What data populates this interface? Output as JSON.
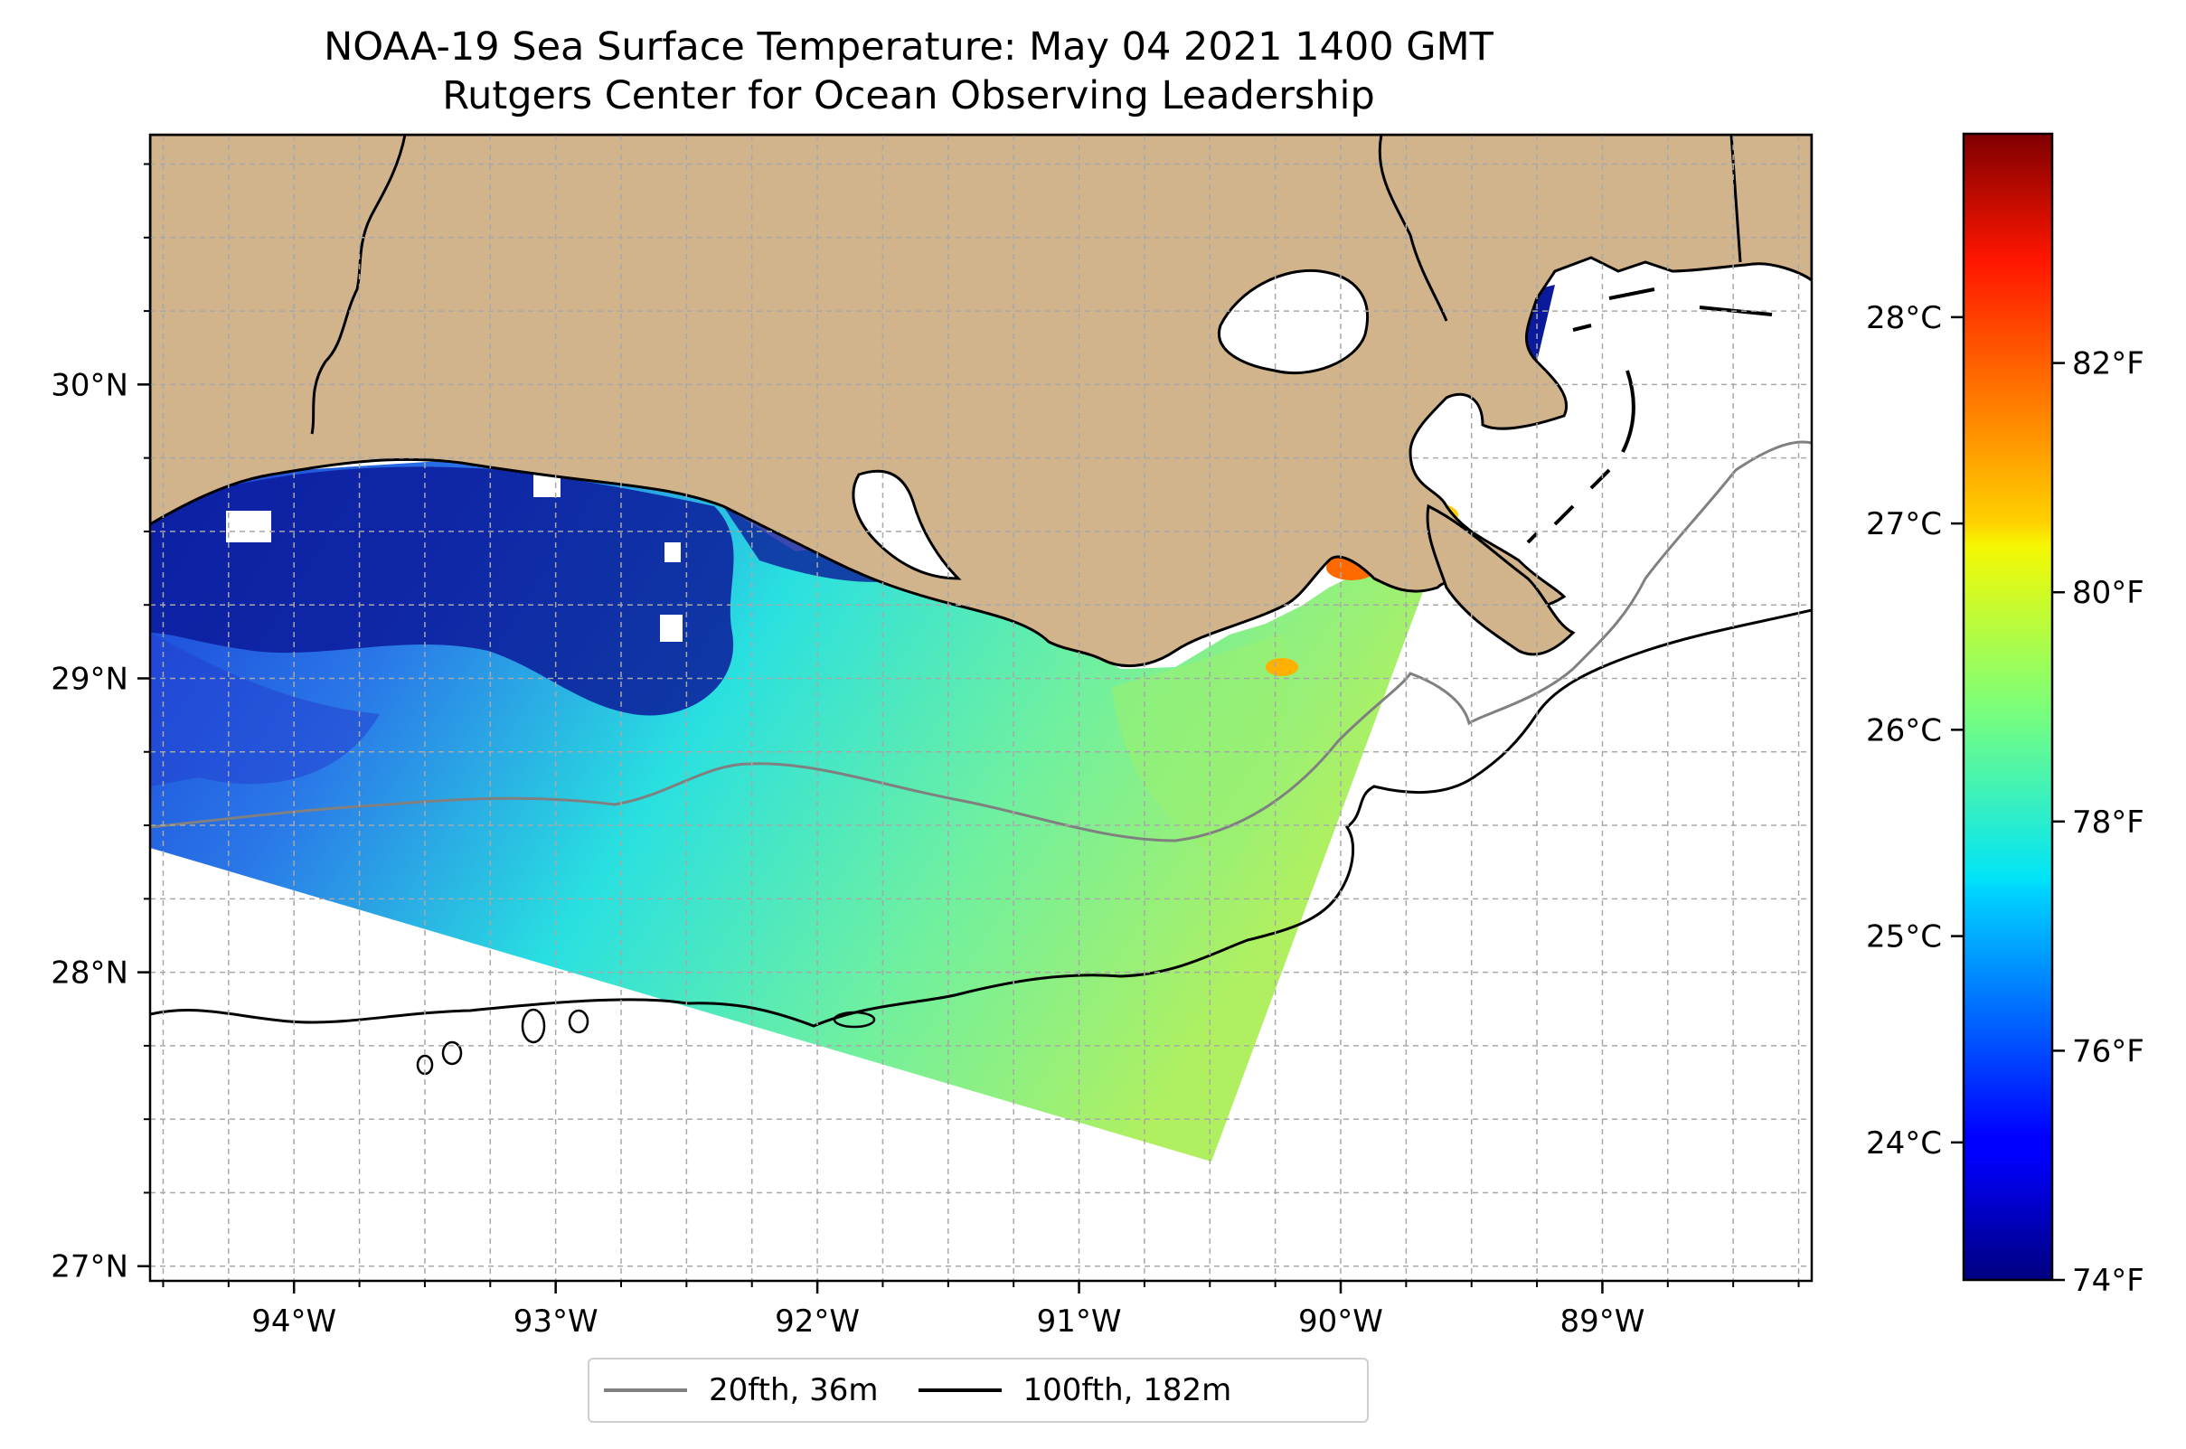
{
  "title_line1": "NOAA-19 Sea Surface Temperature: May 04 2021 1400 GMT",
  "title_line2": "Rutgers Center for Ocean Observing Leadership",
  "map": {
    "lon_range": [
      -94.55,
      -88.2
    ],
    "lat_range": [
      26.95,
      30.85
    ],
    "lon_ticks": [
      {
        "value": -94,
        "label": "94°W"
      },
      {
        "value": -93,
        "label": "93°W"
      },
      {
        "value": -92,
        "label": "92°W"
      },
      {
        "value": -91,
        "label": "91°W"
      },
      {
        "value": -90,
        "label": "90°W"
      },
      {
        "value": -89,
        "label": "89°W"
      }
    ],
    "lat_ticks": [
      {
        "value": 27,
        "label": "27°N"
      },
      {
        "value": 28,
        "label": "28°N"
      },
      {
        "value": 29,
        "label": "29°N"
      },
      {
        "value": 30,
        "label": "30°N"
      }
    ],
    "gridlines": "dashed, every 0.25°",
    "colors": {
      "land": "#d2b48c",
      "water_no_data": "#ffffff",
      "isobath_20fth": "#808080",
      "isobath_100fth": "#000000",
      "frame": "#000000"
    }
  },
  "colorbar": {
    "colormap": "jet",
    "celsius_ticks": [
      {
        "value": 24,
        "label": "24°C"
      },
      {
        "value": 25,
        "label": "25°C"
      },
      {
        "value": 26,
        "label": "26°C"
      },
      {
        "value": 27,
        "label": "27°C"
      },
      {
        "value": 28,
        "label": "28°C"
      }
    ],
    "fahrenheit_ticks": [
      {
        "value": 74,
        "label": "74°F"
      },
      {
        "value": 76,
        "label": "76°F"
      },
      {
        "value": 78,
        "label": "78°F"
      },
      {
        "value": 80,
        "label": "80°F"
      },
      {
        "value": 82,
        "label": "82°F"
      }
    ],
    "range_f": [
      74,
      84
    ]
  },
  "legend": [
    {
      "label": "20fth, 36m",
      "color": "#808080"
    },
    {
      "label": "100fth, 182m",
      "color": "#000000"
    }
  ],
  "sst_summary": {
    "swath_lon_range": [
      -94.55,
      -89.7
    ],
    "swath_lat_range": [
      27.35,
      29.8
    ],
    "nearshore_west_f": 74,
    "offshore_central_f": 79,
    "mississippi_delta_max_f": 82
  }
}
